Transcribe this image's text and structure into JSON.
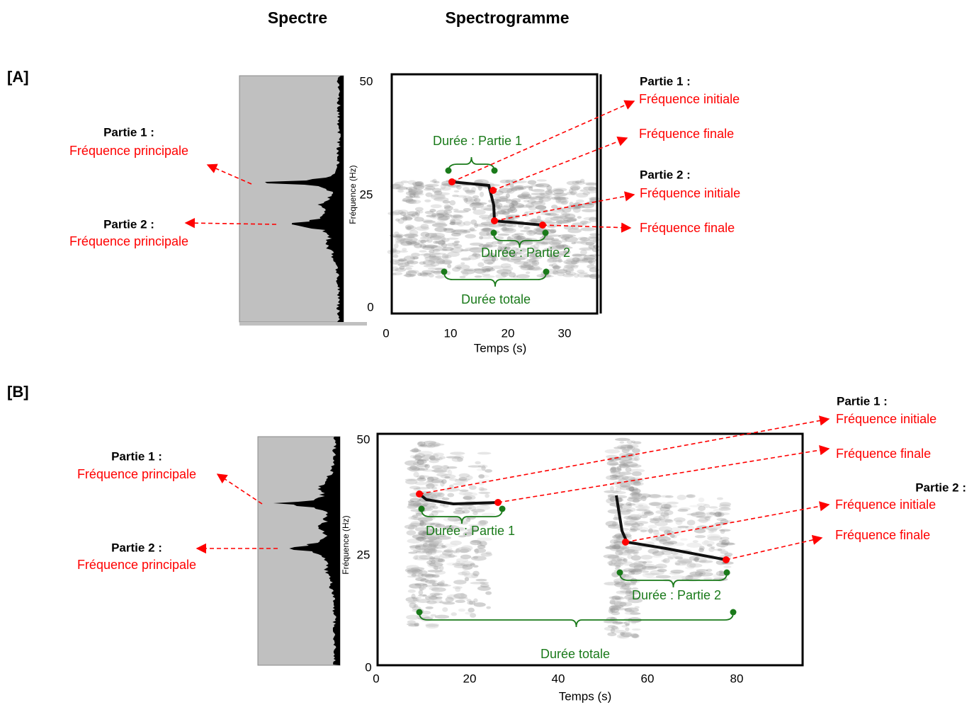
{
  "headers": {
    "spectrum": "Spectre",
    "spectrogram": "Spectrogramme"
  },
  "panels": [
    {
      "label": "[A]",
      "spectrum_annotations": [
        {
          "part": "Partie 1 :",
          "text": "Fréquence principale"
        },
        {
          "part": "Partie 2 :",
          "text": "Fréquence principale"
        }
      ],
      "y_axis": {
        "label": "Fréquence (Hz)",
        "ticks": [
          50,
          25,
          0
        ]
      },
      "x_axis": {
        "label": "Temps (s)",
        "ticks": [
          0,
          10,
          20,
          30
        ]
      },
      "durations": [
        "Durée : Partie 1",
        "Durée : Partie 2",
        "Durée totale"
      ],
      "frequency_annotations": [
        {
          "part": "Partie 1 :",
          "initial": "Fréquence initiale",
          "final": "Fréquence finale"
        },
        {
          "part": "Partie 2 :",
          "initial": "Fréquence initiale",
          "final": "Fréquence finale"
        }
      ]
    },
    {
      "label": "[B]",
      "spectrum_annotations": [
        {
          "part": "Partie 1 :",
          "text": "Fréquence principale"
        },
        {
          "part": "Partie 2 :",
          "text": "Fréquence principale"
        }
      ],
      "y_axis": {
        "label": "Fréquence (Hz)",
        "ticks": [
          50,
          25,
          0
        ]
      },
      "x_axis": {
        "label": "Temps (s)",
        "ticks": [
          0,
          20,
          40,
          60,
          80
        ]
      },
      "durations": [
        "Durée : Partie 1",
        "Durée : Partie 2",
        "Durée totale"
      ],
      "frequency_annotations": [
        {
          "part": "Partie 1 :",
          "initial": "Fréquence initiale",
          "final": "Fréquence finale"
        },
        {
          "part": "Partie 2 :",
          "initial": "Fréquence initiale",
          "final": "Fréquence finale"
        }
      ]
    }
  ]
}
